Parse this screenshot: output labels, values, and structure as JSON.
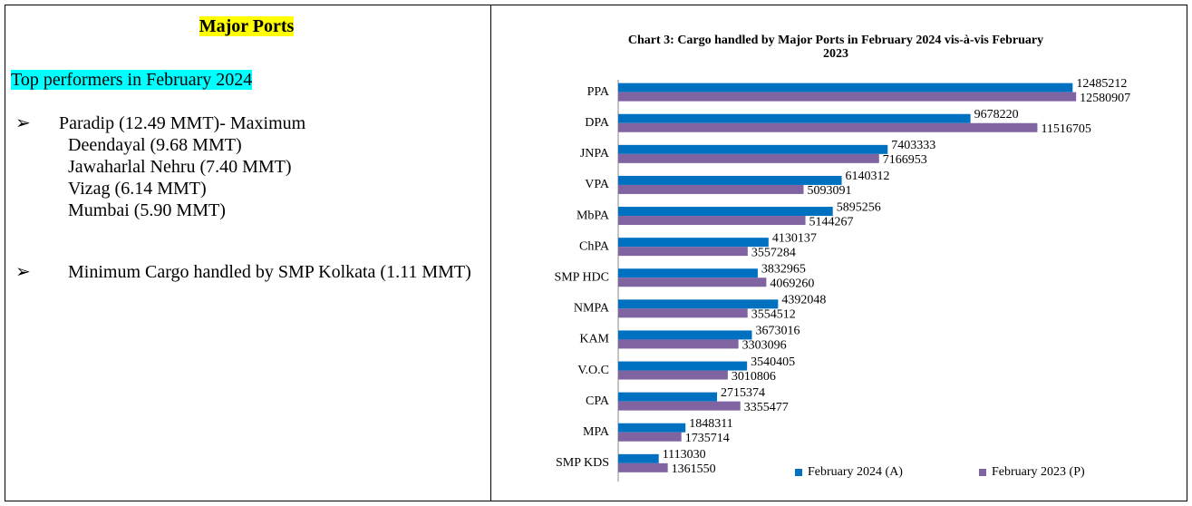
{
  "left": {
    "heading": "Major Ports",
    "subheading": "Top performers in February 2024",
    "bullets": [
      {
        "lines": [
          "Paradip (12.49 MMT)- Maximum",
          "Deendayal (9.68 MMT)",
          "Jawaharlal Nehru (7.40 MMT)",
          "Vizag (6.14 MMT)",
          "Mumbai (5.90 MMT)"
        ]
      },
      {
        "lines": [
          "Minimum Cargo handled by SMP Kolkata (1.11 MMT)"
        ]
      }
    ]
  },
  "chart_data": {
    "type": "hbar",
    "title": "Chart 3: Cargo handled by Major Ports in February 2024 vis-à-vis February 2023",
    "categories": [
      "PPA",
      "DPA",
      "JNPA",
      "VPA",
      "MbPA",
      "ChPA",
      "SMP HDC",
      "NMPA",
      "KAM",
      "V.O.C",
      "CPA",
      "MPA",
      "SMP KDS"
    ],
    "series": [
      {
        "name": "February 2024 (A)",
        "color": "#0070c0",
        "values": [
          12485212,
          9678220,
          7403333,
          6140312,
          5895256,
          4130137,
          3832965,
          4392048,
          3673016,
          3540405,
          2715374,
          1848311,
          1113030
        ]
      },
      {
        "name": "February 2023 (P)",
        "color": "#8064a2",
        "values": [
          12580907,
          11516705,
          7166953,
          5093091,
          5144267,
          3557284,
          4069260,
          3554512,
          3303096,
          3010806,
          3355477,
          1735714,
          1361550
        ]
      }
    ],
    "xlim": [
      0,
      13000000
    ],
    "legend": "bottom-right"
  }
}
